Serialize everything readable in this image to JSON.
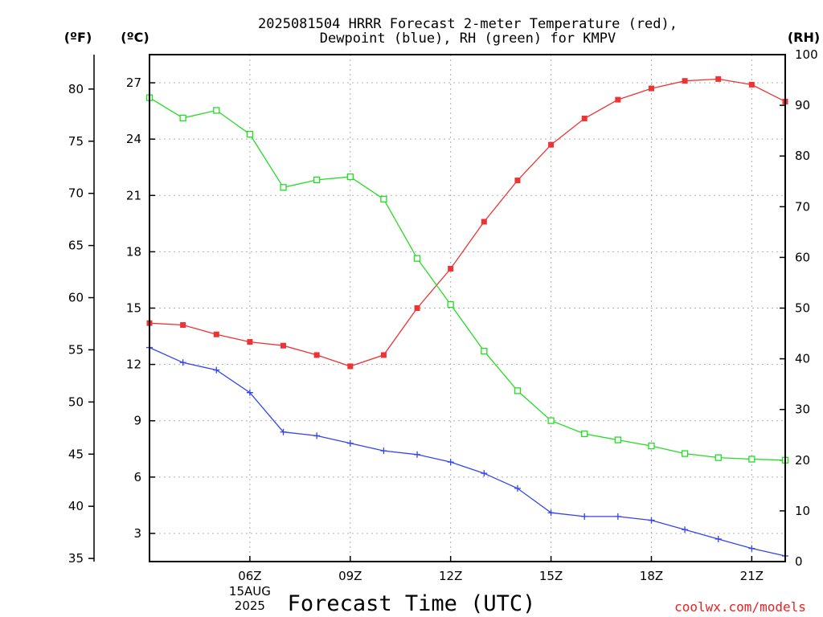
{
  "chart_data": {
    "type": "line",
    "title_lines": [
      "2025081504 HRRR Forecast 2-meter Temperature (red),",
      "Dewpoint (blue), RH (green) for KMPV"
    ],
    "xlabel": "Forecast Time (UTC)",
    "credit": "coolwx.com/models",
    "units": {
      "fahrenheit": "(ºF)",
      "celsius": "(ºC)",
      "rh": "(RH)"
    },
    "x_hours": [
      3,
      4,
      5,
      6,
      7,
      8,
      9,
      10,
      11,
      12,
      13,
      14,
      15,
      16,
      17,
      18,
      19,
      20,
      21,
      22
    ],
    "xlim": [
      3,
      22
    ],
    "x_ticks": [
      {
        "hour": 6,
        "label": "06Z",
        "sub": [
          "15AUG",
          "2025"
        ]
      },
      {
        "hour": 9,
        "label": "09Z"
      },
      {
        "hour": 12,
        "label": "12Z"
      },
      {
        "hour": 15,
        "label": "15Z"
      },
      {
        "hour": 18,
        "label": "18Z"
      },
      {
        "hour": 21,
        "label": "21Z"
      }
    ],
    "celsius_axis": {
      "ylim": [
        1.5,
        28.5
      ],
      "ticks": [
        3,
        6,
        9,
        12,
        15,
        18,
        21,
        24,
        27
      ]
    },
    "fahrenheit_axis": {
      "ticks": [
        35,
        40,
        45,
        50,
        55,
        60,
        65,
        70,
        75,
        80
      ]
    },
    "rh_axis": {
      "ylim": [
        0,
        100
      ],
      "ticks": [
        0,
        10,
        20,
        30,
        40,
        50,
        60,
        70,
        80,
        90,
        100
      ]
    },
    "series": [
      {
        "name": "Temperature",
        "axis": "celsius",
        "color": "#ee3333",
        "marker": "filled-square",
        "values": [
          14.2,
          14.1,
          13.6,
          13.2,
          13.0,
          12.5,
          11.9,
          12.5,
          15.0,
          17.1,
          19.6,
          21.8,
          23.7,
          25.1,
          26.1,
          26.7,
          27.1,
          27.2,
          26.9,
          26.0
        ]
      },
      {
        "name": "Dewpoint",
        "axis": "celsius",
        "color": "#3344ee",
        "marker": "plus",
        "values": [
          12.9,
          12.1,
          11.7,
          10.5,
          8.4,
          8.2,
          7.8,
          7.4,
          7.2,
          6.8,
          6.2,
          5.4,
          4.1,
          3.9,
          3.9,
          3.7,
          3.2,
          2.7,
          2.2,
          1.8
        ]
      },
      {
        "name": "RH",
        "axis": "rh",
        "color": "#22dd22",
        "marker": "open-square",
        "values": [
          91.5,
          87.5,
          89.0,
          84.3,
          73.8,
          75.3,
          75.9,
          71.5,
          59.8,
          50.7,
          41.5,
          33.7,
          27.8,
          25.2,
          24.0,
          22.8,
          21.3,
          20.5,
          20.2,
          20.0
        ]
      }
    ]
  }
}
